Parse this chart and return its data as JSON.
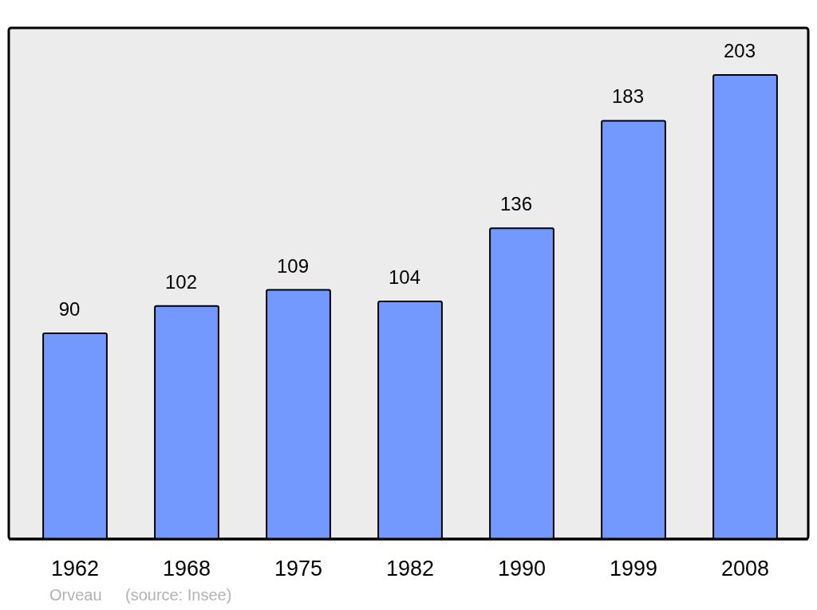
{
  "chart_data": {
    "type": "bar",
    "categories": [
      "1962",
      "1968",
      "1975",
      "1982",
      "1990",
      "1999",
      "2008"
    ],
    "values": [
      90,
      102,
      109,
      104,
      136,
      183,
      203
    ],
    "color": "#7399ff",
    "data_labels": true,
    "annotations": [
      "Orveau",
      "(source: Insee)"
    ]
  }
}
